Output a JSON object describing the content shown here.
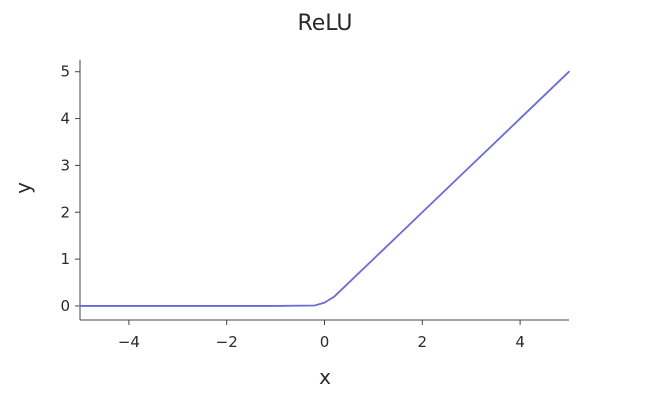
{
  "chart_data": {
    "type": "line",
    "title": "ReLU",
    "xlabel": "x",
    "ylabel": "y",
    "xlim": [
      -5,
      5
    ],
    "ylim": [
      -0.3,
      5.25
    ],
    "xticks": [
      -4,
      -2,
      0,
      2,
      4
    ],
    "xtick_labels": [
      "−4",
      "−2",
      "0",
      "2",
      "4"
    ],
    "yticks": [
      0,
      1,
      2,
      3,
      4,
      5
    ],
    "ytick_labels": [
      "0",
      "1",
      "2",
      "3",
      "4",
      "5"
    ],
    "grid": false,
    "series": [
      {
        "color": "#6b6bd6",
        "x": [
          -5,
          -4,
          -3,
          -2,
          -1,
          -0.2,
          0,
          0.2,
          1,
          2,
          3,
          4,
          5
        ],
        "y": [
          0,
          0,
          0,
          0,
          0,
          0.01,
          0.07,
          0.2,
          1,
          2,
          3,
          4,
          5
        ]
      }
    ]
  }
}
